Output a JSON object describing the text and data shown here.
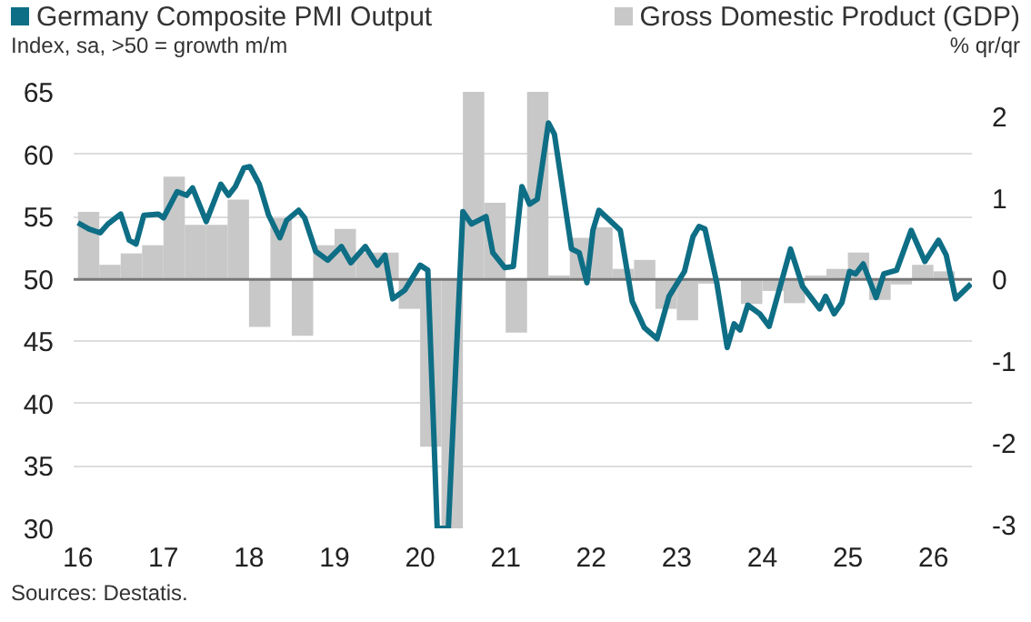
{
  "chart_data": {
    "type": "line",
    "ylabel": "Index, sa, >50 = growth m/m",
    "y2label": "% qr/qr",
    "xlim": [
      2015.95,
      2026.45
    ],
    "xticks": [
      {
        "value": 2016,
        "label": "16"
      },
      {
        "value": 2017,
        "label": "17"
      },
      {
        "value": 2018,
        "label": "18"
      },
      {
        "value": 2019,
        "label": "19"
      },
      {
        "value": 2020,
        "label": "20"
      },
      {
        "value": 2021,
        "label": "21"
      },
      {
        "value": 2022,
        "label": "22"
      },
      {
        "value": 2023,
        "label": "23"
      },
      {
        "value": 2024,
        "label": "24"
      },
      {
        "value": 2025,
        "label": "25"
      },
      {
        "value": 2026,
        "label": "26"
      }
    ],
    "ylim": [
      30,
      65
    ],
    "yticks": [
      30,
      35,
      40,
      45,
      50,
      55,
      60,
      65
    ],
    "y2lim": [
      -3.05,
      2.3
    ],
    "y2ticks": [
      -3,
      -2,
      -1,
      0,
      1,
      2
    ],
    "grid": "y",
    "legend": "top",
    "annotations": [
      "Sources: Destatis."
    ],
    "series": [
      {
        "name": "Gross Domestic Product (GDP)",
        "type": "bar",
        "axis": "y2",
        "color": "#c8c8c8",
        "x": [
          2016.125,
          2016.375,
          2016.625,
          2016.875,
          2017.125,
          2017.375,
          2017.625,
          2017.875,
          2018.125,
          2018.375,
          2018.625,
          2018.875,
          2019.125,
          2019.375,
          2019.625,
          2019.875,
          2020.125,
          2020.375,
          2020.625,
          2020.875,
          2021.125,
          2021.375,
          2021.625,
          2021.875,
          2022.125,
          2022.375,
          2022.625,
          2022.875,
          2023.125,
          2023.375,
          2023.625,
          2023.875,
          2024.125,
          2024.375,
          2024.625,
          2024.875,
          2025.125,
          2025.375,
          2025.625,
          2025.875,
          2026.125
        ],
        "values": [
          0.83,
          0.18,
          0.32,
          0.42,
          1.26,
          0.67,
          0.67,
          0.98,
          -0.58,
          0.75,
          -0.69,
          0.42,
          0.62,
          0.33,
          0.33,
          -0.36,
          -2.05,
          -3.05,
          2.3,
          0.94,
          -0.65,
          2.3,
          0.05,
          0.51,
          0.64,
          0.13,
          0.24,
          -0.36,
          -0.5,
          -0.05,
          0.0,
          -0.3,
          -0.14,
          -0.29,
          0.05,
          0.13,
          0.33,
          -0.25,
          -0.06,
          0.18,
          0.1
        ]
      },
      {
        "name": "Germany Composite PMI Output",
        "color": "#0e6e85",
        "x": [
          2016.0,
          2016.13,
          2016.26,
          2016.35,
          2016.5,
          2016.6,
          2016.68,
          2016.77,
          2016.94,
          2017.0,
          2017.16,
          2017.27,
          2017.34,
          2017.5,
          2017.67,
          2017.76,
          2017.84,
          2017.94,
          2018.01,
          2018.12,
          2018.23,
          2018.36,
          2018.44,
          2018.58,
          2018.65,
          2018.78,
          2018.92,
          2019.08,
          2019.19,
          2019.36,
          2019.5,
          2019.59,
          2019.68,
          2019.82,
          2020.0,
          2020.09,
          2020.2,
          2020.33,
          2020.5,
          2020.6,
          2020.77,
          2020.85,
          2020.99,
          2021.09,
          2021.19,
          2021.28,
          2021.37,
          2021.5,
          2021.57,
          2021.77,
          2021.86,
          2021.95,
          2022.02,
          2022.09,
          2022.34,
          2022.48,
          2022.62,
          2022.77,
          2022.91,
          2023.09,
          2023.19,
          2023.26,
          2023.33,
          2023.47,
          2023.59,
          2023.67,
          2023.74,
          2023.83,
          2023.97,
          2024.08,
          2024.33,
          2024.47,
          2024.67,
          2024.74,
          2024.84,
          2024.93,
          2025.02,
          2025.09,
          2025.18,
          2025.33,
          2025.42,
          2025.57,
          2025.74,
          2025.9,
          2026.06,
          2026.15,
          2026.26,
          2026.44
        ],
        "values": [
          54.5,
          54.0,
          53.7,
          54.4,
          55.2,
          53.1,
          52.8,
          55.1,
          55.2,
          54.9,
          57.0,
          56.7,
          57.3,
          54.6,
          57.6,
          56.7,
          57.4,
          58.9,
          59.0,
          57.6,
          55.1,
          53.3,
          54.7,
          55.5,
          54.9,
          52.2,
          51.5,
          52.6,
          51.3,
          52.6,
          51.1,
          51.9,
          48.4,
          49.1,
          51.1,
          50.7,
          30,
          30,
          55.4,
          54.4,
          55.0,
          52.1,
          50.9,
          51.0,
          57.4,
          56.0,
          56.4,
          62.5,
          61.6,
          52.4,
          52.1,
          49.7,
          53.9,
          55.5,
          53.9,
          48.2,
          46.1,
          45.2,
          48.6,
          50.6,
          53.4,
          54.2,
          54.0,
          49.6,
          44.5,
          46.4,
          45.9,
          47.9,
          47.2,
          46.2,
          52.4,
          49.4,
          47.6,
          48.6,
          47.2,
          48.1,
          50.6,
          50.4,
          51.2,
          48.5,
          50.4,
          50.7,
          53.9,
          51.4,
          53.1,
          51.9,
          48.4,
          49.6
        ]
      }
    ]
  }
}
